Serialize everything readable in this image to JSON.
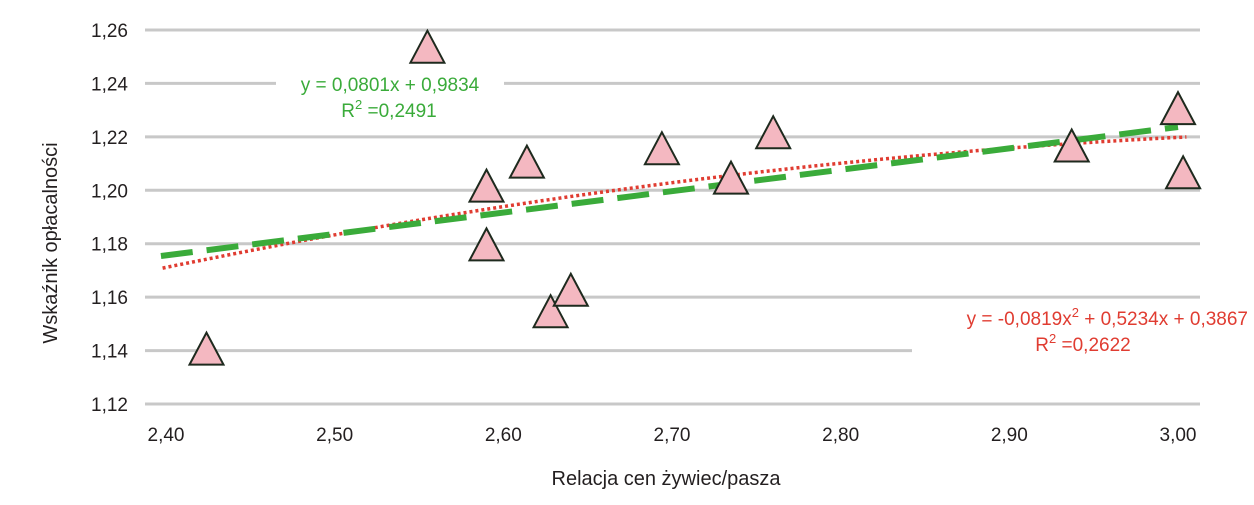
{
  "chart_data": {
    "type": "scatter",
    "xlabel": "Relacja cen żywiec/pasza",
    "ylabel": "Wskaźnik opłacalności",
    "xlim": [
      2.4,
      3.0
    ],
    "ylim": [
      1.12,
      1.26
    ],
    "x_ticks": [
      "2,40",
      "2,50",
      "2,60",
      "2,70",
      "2,80",
      "2,90",
      "3,00"
    ],
    "y_ticks": [
      "1,12",
      "1,14",
      "1,16",
      "1,18",
      "1,20",
      "1,22",
      "1,24",
      "1,26"
    ],
    "grid": "horizontal",
    "series": [
      {
        "marker": "triangle",
        "color": "#f4b8c1",
        "points": [
          {
            "x": 2.424,
            "y": 1.14
          },
          {
            "x": 2.555,
            "y": 1.253
          },
          {
            "x": 2.59,
            "y": 1.201
          },
          {
            "x": 2.59,
            "y": 1.179
          },
          {
            "x": 2.614,
            "y": 1.21
          },
          {
            "x": 2.628,
            "y": 1.154
          },
          {
            "x": 2.64,
            "y": 1.162
          },
          {
            "x": 2.694,
            "y": 1.215
          },
          {
            "x": 2.735,
            "y": 1.204
          },
          {
            "x": 2.76,
            "y": 1.221
          },
          {
            "x": 2.937,
            "y": 1.216
          },
          {
            "x": 3.0,
            "y": 1.23
          },
          {
            "x": 3.003,
            "y": 1.206
          }
        ]
      }
    ],
    "trendlines": [
      {
        "type": "linear",
        "color": "#3aab3a",
        "style": "dashed",
        "coef": [
          0.9834,
          0.0801
        ],
        "equation": "y = 0,0801x + 0,9834",
        "r2_label": "R",
        "r2_sup": "2",
        "r2_value": " =0,2491"
      },
      {
        "type": "polynomial",
        "color": "#e03c31",
        "style": "dotted",
        "coef": [
          0.3867,
          0.5234,
          -0.0819
        ],
        "equation_part1": "y = -0,0819x",
        "equation_sup": "2",
        "equation_part2": " + 0,5234x + 0,3867",
        "r2_label": "R",
        "r2_sup": "2",
        "r2_value": " =0,2622"
      }
    ]
  }
}
